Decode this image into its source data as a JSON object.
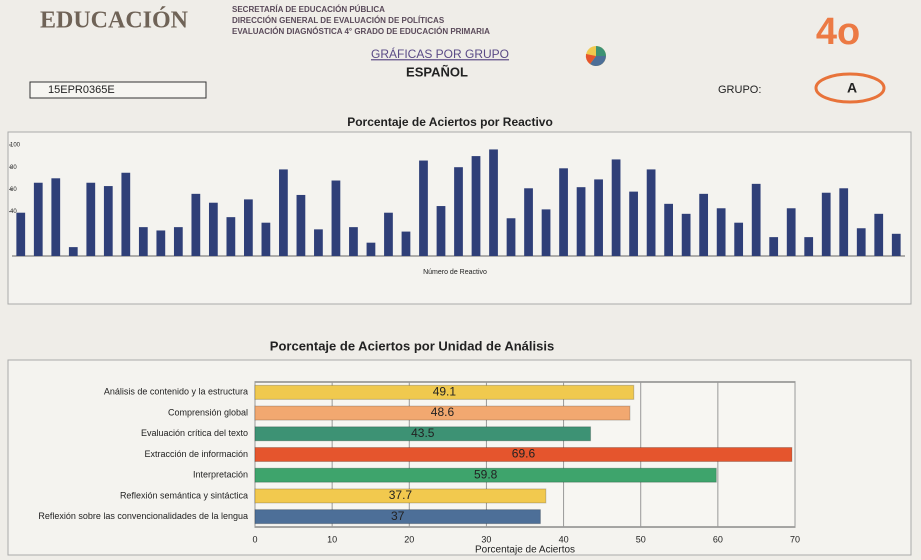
{
  "header": {
    "logo": "EDUCACIÓN",
    "lines": [
      "SECRETARÍA DE EDUCACIÓN PÚBLICA",
      "DIRECCIÓN GENERAL DE EVALUACIÓN DE POLÍTICAS",
      "EVALUACIÓN DIAGNÓSTICA 4° GRADO DE EDUCACIÓN PRIMARIA"
    ],
    "section": "GRÁFICAS POR GRUPO",
    "subject": "ESPAÑOL",
    "school_code": "15EPR0365E",
    "group_label": "GRUPO:",
    "group": "A",
    "grade": "4o"
  },
  "chart_data": [
    {
      "type": "bar",
      "title": "Porcentaje de Aciertos por Reactivo",
      "x_label": "Número de Reactivo",
      "values": [
        39,
        66,
        70,
        8,
        66,
        63,
        75,
        26,
        23,
        26,
        56,
        48,
        35,
        51,
        30,
        78,
        55,
        24,
        68,
        26,
        12,
        39,
        22,
        86,
        45,
        80,
        90,
        96,
        34,
        61,
        42,
        79,
        62,
        69,
        87,
        58,
        78,
        47,
        38,
        56,
        43,
        30,
        65,
        17,
        43,
        17,
        57,
        61,
        25,
        38,
        20
      ],
      "color": "#2f3f78",
      "ylim": [
        0,
        100
      ],
      "yticks": [
        40,
        60,
        80,
        100
      ],
      "grid": false
    },
    {
      "type": "hbar",
      "title": "Porcentaje de Aciertos por Unidad de Análisis",
      "x_label": "Porcentaje de Aciertos",
      "categories": [
        "Análisis de contenido y la estructura",
        "Comprensión global",
        "Evaluación crítica del texto",
        "Extracción de información",
        "Interpretación",
        "Reflexión semántica y sintáctica",
        "Reflexión sobre las convencionalidades de la lengua"
      ],
      "values": [
        49.1,
        48.6,
        43.5,
        69.6,
        59.8,
        37.7,
        37
      ],
      "colors": [
        "#f0c94e",
        "#f2a870",
        "#3d9274",
        "#e5552d",
        "#3ea46c",
        "#f2c94e",
        "#4d6f98"
      ],
      "xlim": [
        0,
        70
      ],
      "xticks": [
        0,
        10,
        20,
        30,
        40,
        50,
        60,
        70
      ],
      "grid": true
    }
  ]
}
